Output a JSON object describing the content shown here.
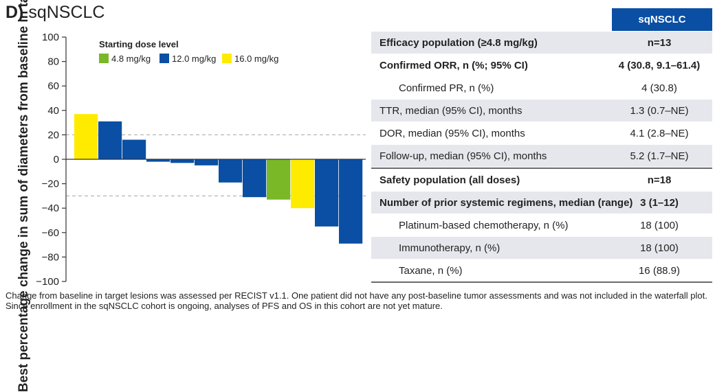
{
  "panel": {
    "letter": "D)",
    "title": "sqNSCLC"
  },
  "chart_data": {
    "type": "bar",
    "ylabel": "Best percentage change in sum of diameters from baseline in target lesions",
    "ylim": [
      -100,
      100
    ],
    "yticks": [
      100,
      80,
      60,
      40,
      20,
      0,
      -20,
      -40,
      -60,
      -80,
      -100
    ],
    "ytick_labels": [
      "100",
      "80",
      "60",
      "40",
      "20",
      "0",
      "−20",
      "−40",
      "−60",
      "−80",
      "−100"
    ],
    "reference_lines": [
      20,
      -30
    ],
    "legend": {
      "title": "Starting dose level",
      "items": [
        {
          "label": "4.8 mg/kg",
          "color": "#7ab828"
        },
        {
          "label": "12.0 mg/kg",
          "color": "#0a4fa3"
        },
        {
          "label": "16.0 mg/kg",
          "color": "#ffeb00"
        }
      ]
    },
    "bars": [
      {
        "value": 37,
        "dose": "16.0 mg/kg"
      },
      {
        "value": 31,
        "dose": "12.0 mg/kg"
      },
      {
        "value": 16,
        "dose": "12.0 mg/kg"
      },
      {
        "value": -2,
        "dose": "12.0 mg/kg"
      },
      {
        "value": -3,
        "dose": "12.0 mg/kg"
      },
      {
        "value": -5,
        "dose": "12.0 mg/kg"
      },
      {
        "value": -19,
        "dose": "12.0 mg/kg"
      },
      {
        "value": -31,
        "dose": "12.0 mg/kg"
      },
      {
        "value": -33,
        "dose": "4.8 mg/kg"
      },
      {
        "value": -40,
        "dose": "16.0 mg/kg"
      },
      {
        "value": -55,
        "dose": "12.0 mg/kg"
      },
      {
        "value": -69,
        "dose": "12.0 mg/kg"
      }
    ]
  },
  "table": {
    "header": "sqNSCLC",
    "rows": [
      {
        "label": "Efficacy population (≥4.8 mg/kg)",
        "value": "n=13"
      },
      {
        "label": "Confirmed ORR, n (%; 95% CI)",
        "value": "4 (30.8, 9.1–61.4)"
      },
      {
        "label": "Confirmed PR, n (%)",
        "value": "4 (30.8)"
      },
      {
        "label": "TTR, median (95% CI), months",
        "value": "1.3 (0.7–NE)"
      },
      {
        "label": "DOR, median (95% CI), months",
        "value": "4.1 (2.8–NE)"
      },
      {
        "label": "Follow-up, median (95% CI), months",
        "value": "5.2 (1.7–NE)"
      },
      {
        "label": "Safety population (all doses)",
        "value": "n=18"
      },
      {
        "label": "Number of prior systemic regimens, median (range)",
        "value": "3 (1–12)"
      },
      {
        "label": "Platinum-based chemotherapy, n (%)",
        "value": "18 (100)"
      },
      {
        "label": "Immunotherapy, n (%)",
        "value": "18 (100)"
      },
      {
        "label": "Taxane, n (%)",
        "value": "16 (88.9)"
      }
    ]
  },
  "footnote": "Change from baseline in target lesions was assessed per RECIST v1.1. One patient did not have any post-baseline tumor assessments and was not included in the waterfall plot. Since enrollment in the sqNSCLC cohort is ongoing, analyses of PFS and OS in this cohort are not yet mature."
}
